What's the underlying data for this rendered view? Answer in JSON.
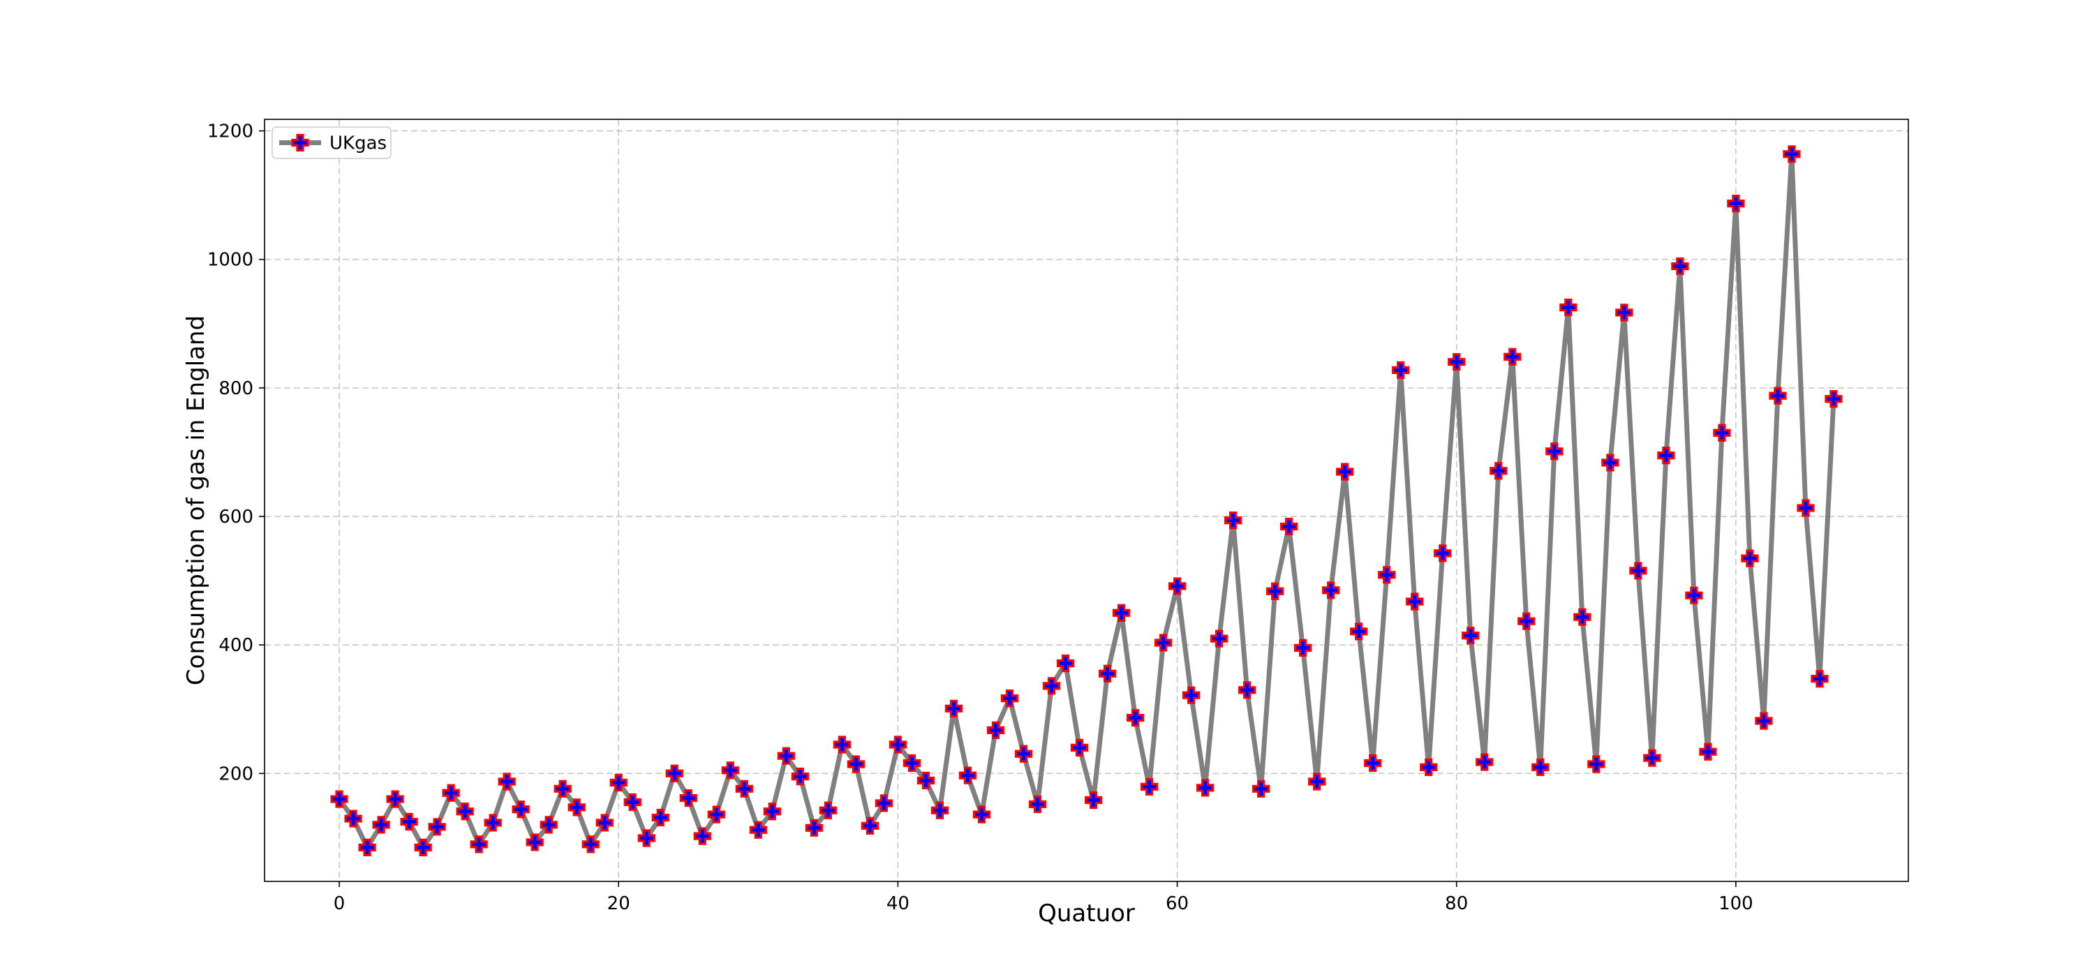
{
  "chart_data": {
    "type": "line",
    "title": "",
    "xlabel": "Quatuor",
    "ylabel": "Consumption of gas in England",
    "xlim": [
      -5.35,
      112.35
    ],
    "ylim": [
      32,
      1218
    ],
    "xticks": [
      0,
      20,
      40,
      60,
      80,
      100
    ],
    "yticks": [
      200,
      400,
      600,
      800,
      1000,
      1200
    ],
    "grid": true,
    "legend_position": "upper left",
    "series": [
      {
        "name": "UKgas",
        "line_color": "#808080",
        "marker": "plus-filled",
        "marker_face_color": "#0000ff",
        "marker_edge_color": "#ff0000",
        "x": [
          0,
          1,
          2,
          3,
          4,
          5,
          6,
          7,
          8,
          9,
          10,
          11,
          12,
          13,
          14,
          15,
          16,
          17,
          18,
          19,
          20,
          21,
          22,
          23,
          24,
          25,
          26,
          27,
          28,
          29,
          30,
          31,
          32,
          33,
          34,
          35,
          36,
          37,
          38,
          39,
          40,
          41,
          42,
          43,
          44,
          45,
          46,
          47,
          48,
          49,
          50,
          51,
          52,
          53,
          54,
          55,
          56,
          57,
          58,
          59,
          60,
          61,
          62,
          63,
          64,
          65,
          66,
          67,
          68,
          69,
          70,
          71,
          72,
          73,
          74,
          75,
          76,
          77,
          78,
          79,
          80,
          81,
          82,
          83,
          84,
          85,
          86,
          87,
          88,
          89,
          90,
          91,
          92,
          93,
          94,
          95,
          96,
          97,
          98,
          99,
          100,
          101,
          102,
          103,
          104,
          105,
          106,
          107
        ],
        "y": [
          160.1,
          129.7,
          84.8,
          120.1,
          160.1,
          124.9,
          84.8,
          116.9,
          169.7,
          140.9,
          89.7,
          123.3,
          187.3,
          144.1,
          92.9,
          120.1,
          176.1,
          147.3,
          89.7,
          123.3,
          185.7,
          155.3,
          99.3,
          131.3,
          200.1,
          161.7,
          102.5,
          136.1,
          204.9,
          176.1,
          112.1,
          140.9,
          227.3,
          195.3,
          115.3,
          142.5,
          244.9,
          214.5,
          118.5,
          153.7,
          244.9,
          216.1,
          188.9,
          142.5,
          301.0,
          196.9,
          136.1,
          267.3,
          317.0,
          230.5,
          152.1,
          336.2,
          371.4,
          240.1,
          158.5,
          355.4,
          449.9,
          286.6,
          179.3,
          403.4,
          491.5,
          321.8,
          177.7,
          409.8,
          593.9,
          329.8,
          176.1,
          483.5,
          584.3,
          395.4,
          187.3,
          485.1,
          669.5,
          421.0,
          216.1,
          509.1,
          827.7,
          467.5,
          209.7,
          542.7,
          840.5,
          414.6,
          217.7,
          670.9,
          848.5,
          437.0,
          209.7,
          701.3,
          925.3,
          443.4,
          214.5,
          683.7,
          917.3,
          515.5,
          224.1,
          694.9,
          989.4,
          477.1,
          233.7,
          730.1,
          1087.0,
          534.7,
          281.8,
          787.8,
          1163.9,
          613.1,
          347.4,
          782.9
        ]
      }
    ]
  }
}
